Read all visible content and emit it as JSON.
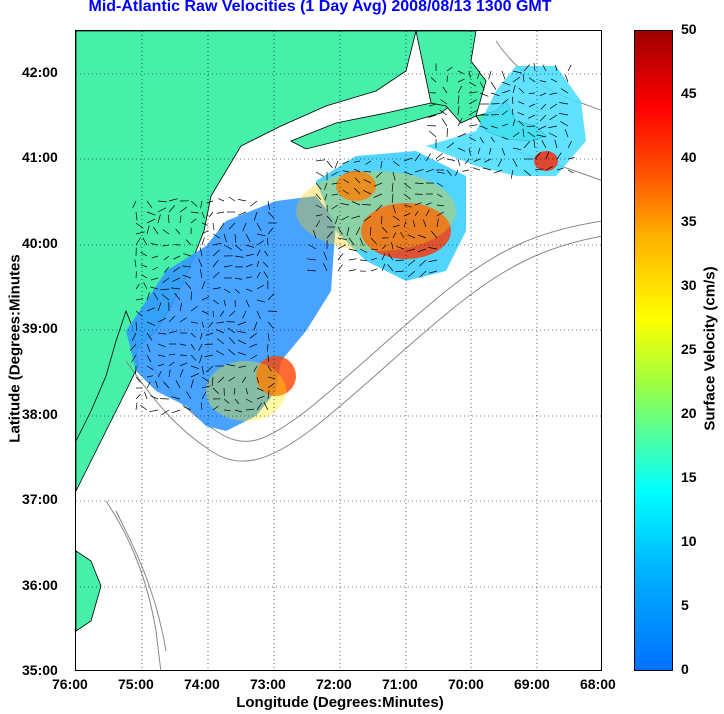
{
  "title": "Mid-Atlantic Raw Velocities (1 Day Avg) 2008/08/13 1300 GMT",
  "xlabel": "Longitude (Degrees:Minutes)",
  "ylabel": "Latitude (Degrees:Minutes",
  "colorbar_label": "Surface Velocity (cm/s)",
  "x_ticks": [
    "76:00",
    "75:00",
    "74:00",
    "73:00",
    "72:00",
    "71:00",
    "70:00",
    "69:00",
    "68:00"
  ],
  "y_ticks": [
    "42:00",
    "41:00",
    "40:00",
    "39:00",
    "38:00",
    "37:00",
    "36:00",
    "35:00"
  ],
  "colorbar_ticks": [
    "50",
    "45",
    "40",
    "35",
    "30",
    "25",
    "20",
    "15",
    "10",
    "5",
    "0"
  ],
  "colors": {
    "land": "#46f0a8",
    "title": "#0000ff"
  },
  "chart_data": {
    "type": "heatmap",
    "xlim": [
      -76,
      -68
    ],
    "ylim": [
      35,
      42.5
    ],
    "color_range": [
      0,
      50
    ],
    "grid": true
  }
}
